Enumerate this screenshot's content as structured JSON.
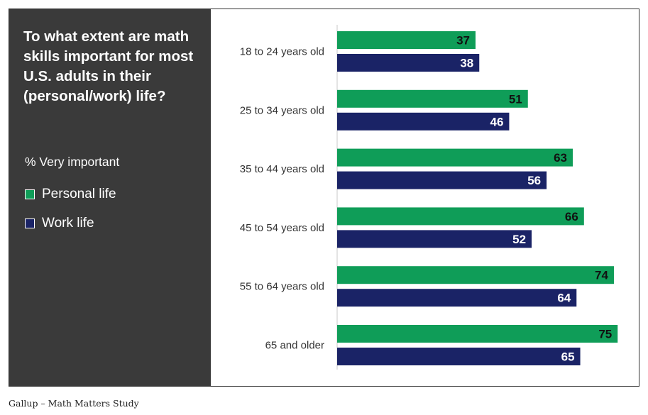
{
  "panel": {
    "title": "To what extent are math skills important for most U.S. adults in their (personal/work) life?",
    "subtitle": "% Very important"
  },
  "legend": [
    {
      "label": "Personal life",
      "color": "#0f9d58"
    },
    {
      "label": "Work life",
      "color": "#1a2366"
    }
  ],
  "source": "Gallup – Math Matters Study",
  "chart_data": {
    "type": "bar",
    "orientation": "horizontal",
    "categories": [
      "18 to 24 years old",
      "25 to 34 years old",
      "35 to 44 years old",
      "45 to 54 years old",
      "55 to 64 years old",
      "65 and older"
    ],
    "series": [
      {
        "name": "Personal life",
        "color": "#0f9d58",
        "label_color": "#111111",
        "values": [
          37,
          51,
          63,
          66,
          74,
          75
        ]
      },
      {
        "name": "Work life",
        "color": "#1a2366",
        "label_color": "#ffffff",
        "values": [
          38,
          46,
          56,
          52,
          64,
          65
        ]
      }
    ],
    "xlim": [
      0,
      100
    ],
    "grid": false
  }
}
